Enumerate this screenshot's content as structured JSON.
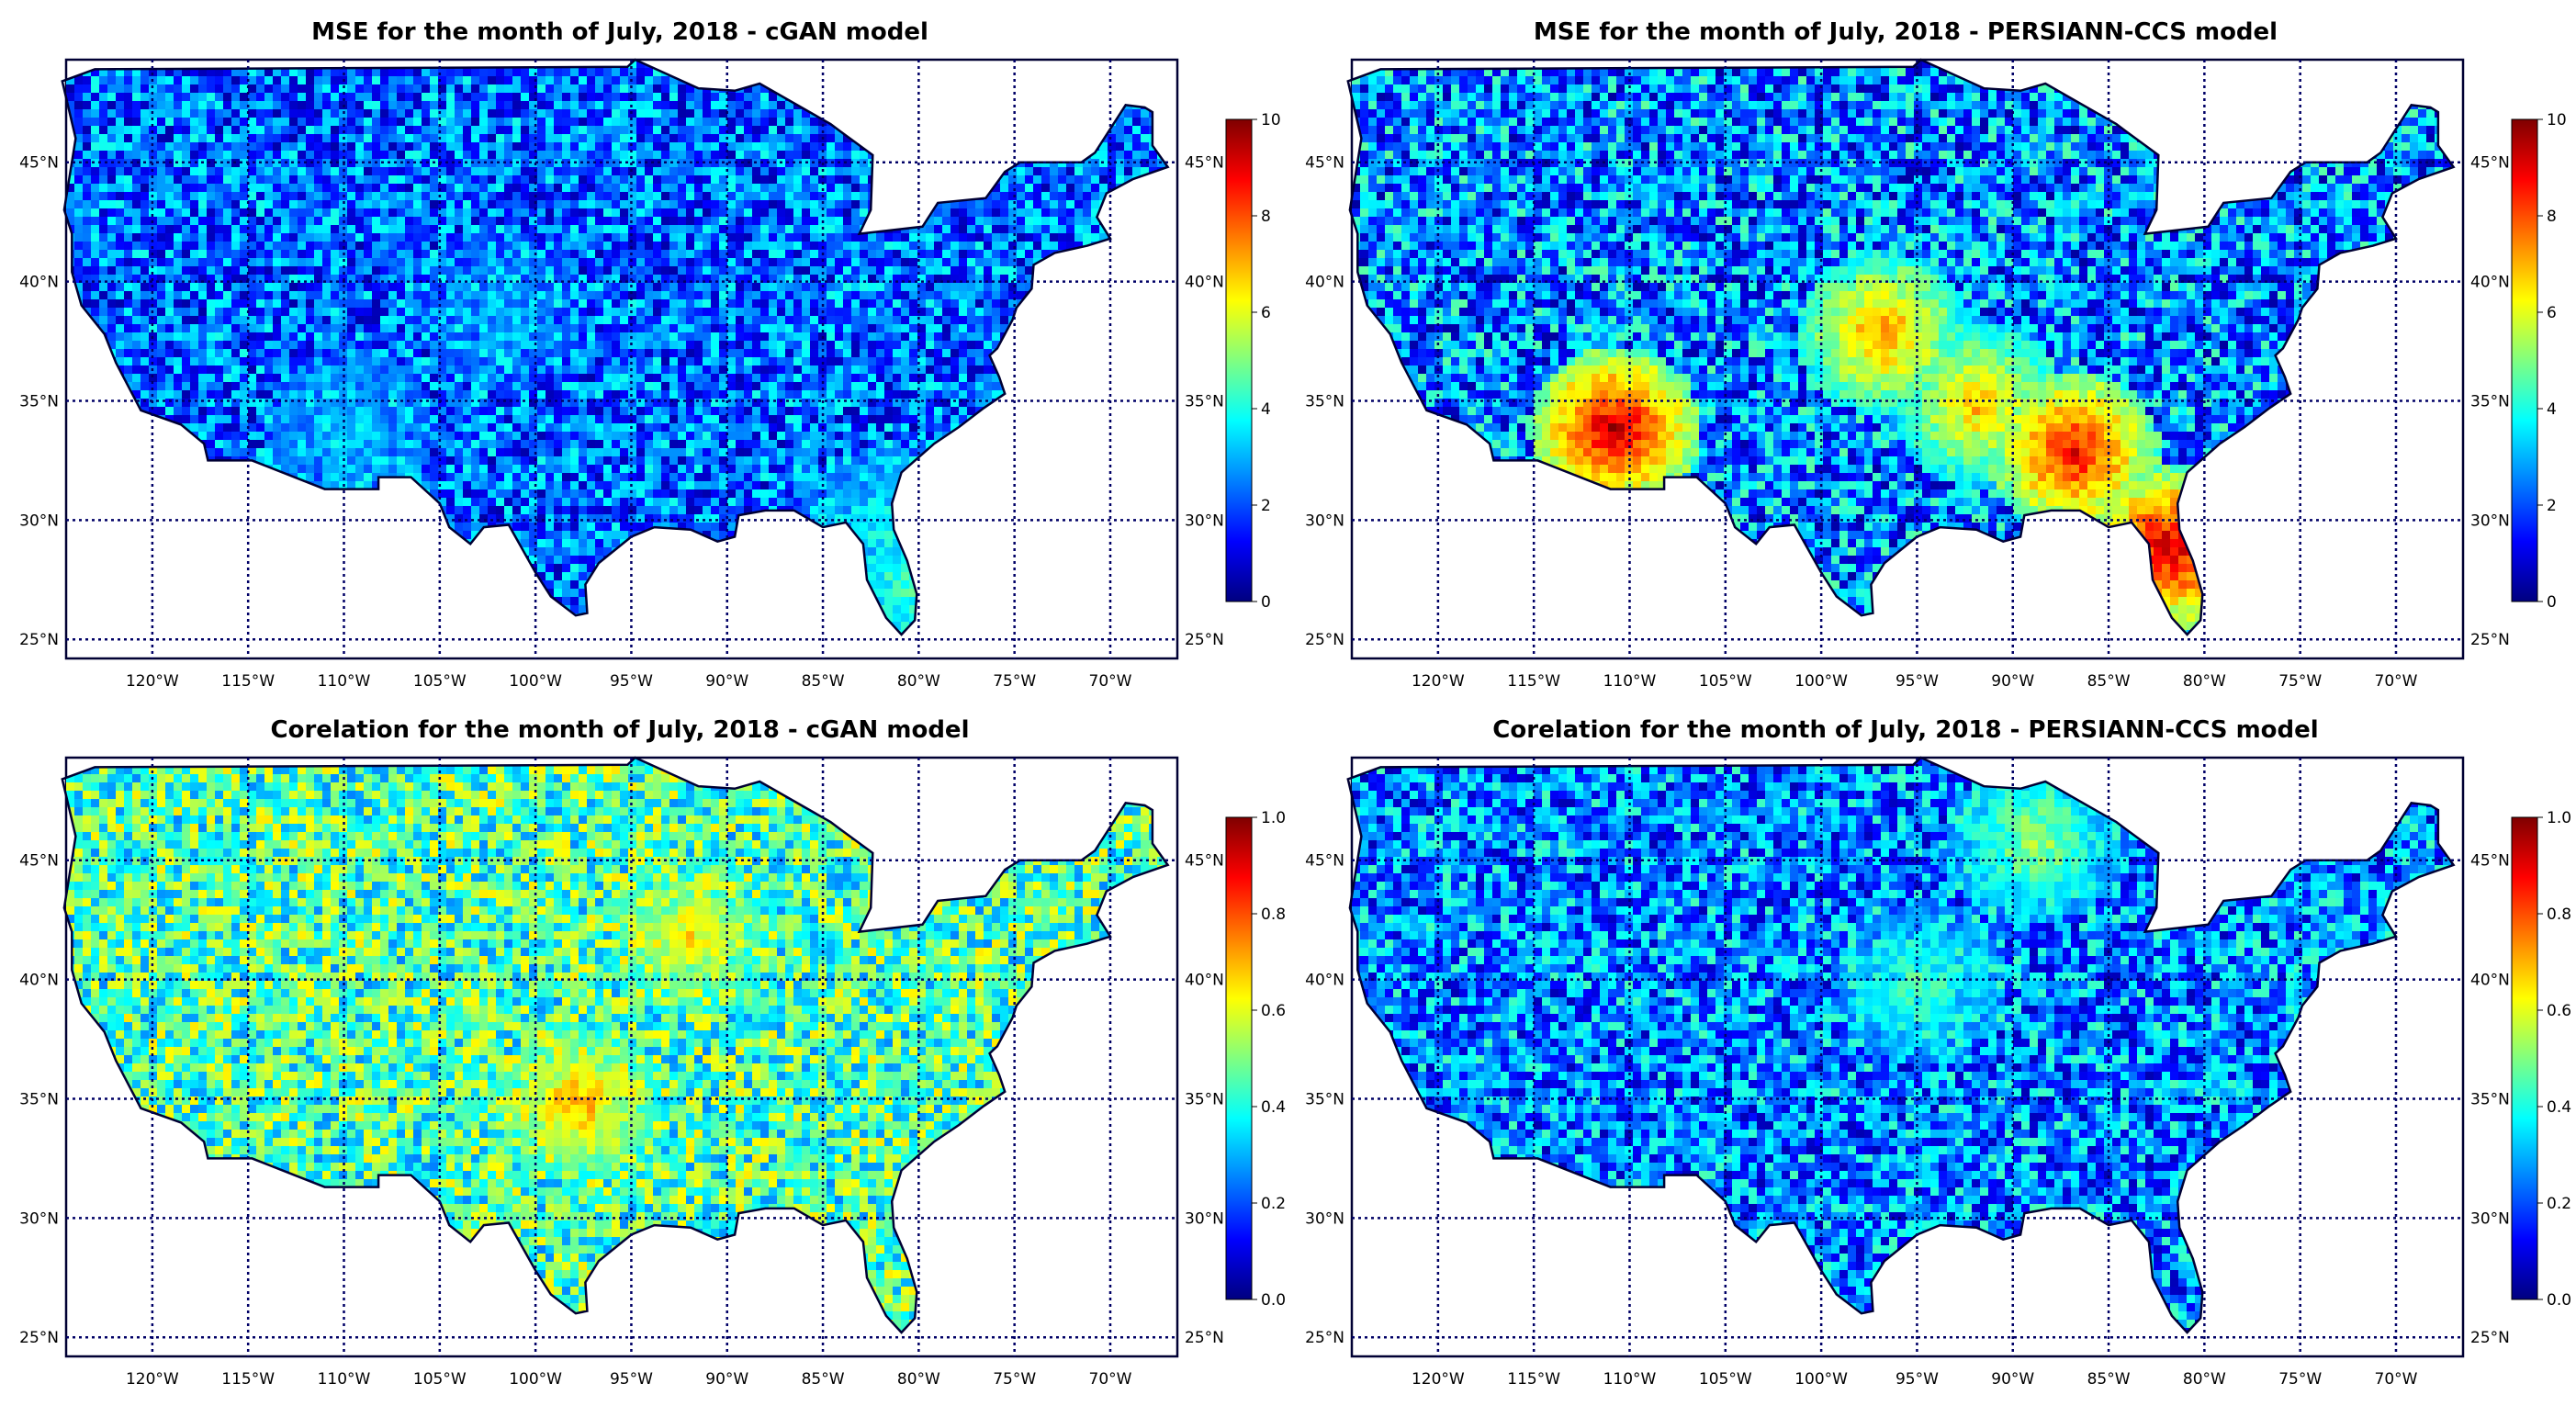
{
  "figure": {
    "lat_ticks": [
      "45°N",
      "40°N",
      "35°N",
      "30°N",
      "25°N"
    ],
    "lon_ticks": [
      "120°W",
      "115°W",
      "110°W",
      "105°W",
      "100°W",
      "95°W",
      "90°W",
      "85°W",
      "80°W",
      "75°W",
      "70°W"
    ],
    "colormap": [
      "#00007f",
      "#0000ff",
      "#0080ff",
      "#00ffff",
      "#80ff80",
      "#ffff00",
      "#ff8000",
      "#ff0000",
      "#7f0000"
    ],
    "grid_color": "#000066"
  },
  "panels": [
    {
      "title": "MSE for the month of July, 2018 - cGAN model",
      "metric": "MSE",
      "model": "cGAN",
      "colorbar": {
        "min": 0,
        "max": 10,
        "ticks": [
          "10",
          "8",
          "6",
          "4",
          "2",
          "0"
        ]
      },
      "field": {
        "base": 0.22,
        "noise": 0.18,
        "hot": [
          {
            "lon": -110,
            "lat": 34,
            "level": 0.35
          },
          {
            "lon": -82,
            "lat": 30,
            "level": 0.4
          },
          {
            "lon": -81,
            "lat": 27,
            "level": 0.45
          },
          {
            "lon": -102,
            "lat": 39,
            "level": 0.3
          }
        ]
      }
    },
    {
      "title": "MSE for the month of July, 2018 - PERSIANN-CCS model",
      "metric": "MSE",
      "model": "PERSIANN-CCS",
      "colorbar": {
        "min": 0,
        "max": 10,
        "ticks": [
          "10",
          "8",
          "6",
          "4",
          "2",
          "0"
        ]
      },
      "field": {
        "base": 0.25,
        "noise": 0.22,
        "hot": [
          {
            "lon": -111,
            "lat": 34,
            "level": 0.95
          },
          {
            "lon": -87,
            "lat": 33,
            "level": 0.9
          },
          {
            "lon": -82,
            "lat": 29,
            "level": 0.95
          },
          {
            "lon": -97,
            "lat": 38,
            "level": 0.75
          },
          {
            "lon": -92,
            "lat": 35,
            "level": 0.7
          }
        ]
      }
    },
    {
      "title": "Corelation for the month of July, 2018 - cGAN model",
      "metric": "Correlation",
      "model": "cGAN",
      "colorbar": {
        "min": 0.0,
        "max": 1.0,
        "ticks": [
          "1.0",
          "0.8",
          "0.6",
          "0.4",
          "0.2",
          "0.0"
        ]
      },
      "field": {
        "base": 0.45,
        "noise": 0.2,
        "hot": [
          {
            "lon": -98,
            "lat": 35,
            "level": 0.72
          },
          {
            "lon": -92,
            "lat": 42,
            "level": 0.65
          }
        ]
      }
    },
    {
      "title": "Corelation for the month of July, 2018 - PERSIANN-CCS model",
      "metric": "Correlation",
      "model": "PERSIANN-CCS",
      "colorbar": {
        "min": 0.0,
        "max": 1.0,
        "ticks": [
          "1.0",
          "0.8",
          "0.6",
          "0.4",
          "0.2",
          "0.0"
        ]
      },
      "field": {
        "base": 0.25,
        "noise": 0.2,
        "hot": [
          {
            "lon": -89,
            "lat": 46,
            "level": 0.55
          },
          {
            "lon": -95,
            "lat": 40,
            "level": 0.45
          }
        ]
      }
    }
  ]
}
